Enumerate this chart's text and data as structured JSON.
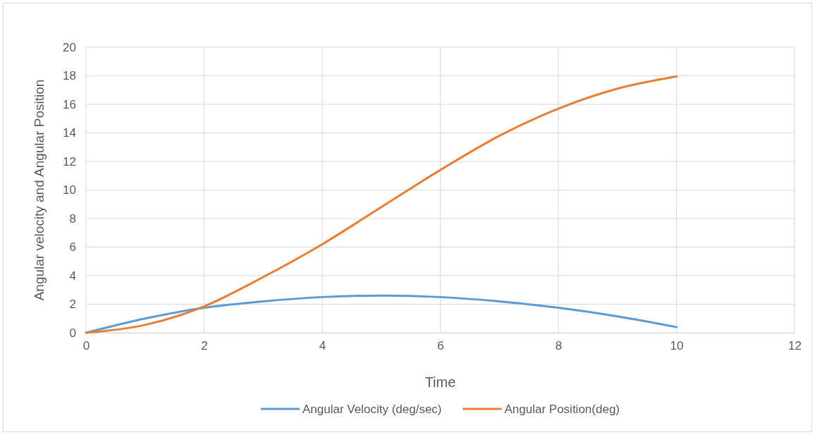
{
  "chart_data": {
    "type": "line",
    "xlabel": "Time",
    "ylabel": "Angular velocity and Angular Position",
    "xlim": [
      0,
      12
    ],
    "xticks": [
      0,
      2,
      4,
      6,
      8,
      10,
      12
    ],
    "ylim": [
      0,
      20
    ],
    "yticks": [
      0,
      2,
      4,
      6,
      8,
      10,
      12,
      14,
      16,
      18,
      20
    ],
    "grid": true,
    "legend": "bottom",
    "marker": "none",
    "line_style": "solid",
    "x": [
      0,
      1,
      2,
      3,
      4,
      5,
      6,
      7,
      8,
      9,
      10
    ],
    "series": [
      {
        "name": "Angular Velocity (deg/sec)",
        "color": "#5b9bd5",
        "values": [
          0,
          1.0,
          1.75,
          2.2,
          2.5,
          2.6,
          2.5,
          2.2,
          1.75,
          1.15,
          0.4
        ]
      },
      {
        "name": "Angular Position(deg)",
        "color": "#ed7d31",
        "values": [
          0,
          0.55,
          1.85,
          3.9,
          6.2,
          8.8,
          11.4,
          13.8,
          15.7,
          17.1,
          17.95
        ]
      }
    ]
  }
}
